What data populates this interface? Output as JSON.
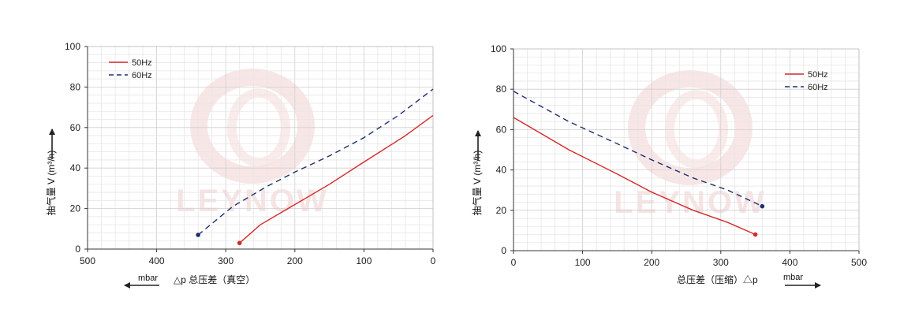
{
  "charts": [
    {
      "id": "vacuum",
      "ylabel": "抽气量 V (m³/h)",
      "xlabel": "△p 总压差（真空）",
      "xunit": "mbar",
      "xticks": [
        500,
        400,
        300,
        200,
        100,
        0
      ],
      "yticks": [
        0,
        20,
        40,
        60,
        80,
        100
      ],
      "legend": [
        "50Hz",
        "60Hz"
      ]
    },
    {
      "id": "pressure",
      "ylabel": "抽气量 V (m³/h)",
      "xlabel": "总压差（压缩）△p",
      "xunit": "mbar",
      "xticks": [
        0,
        100,
        200,
        300,
        400,
        500
      ],
      "yticks": [
        0,
        20,
        40,
        60,
        80,
        100
      ],
      "legend": [
        "50Hz",
        "60Hz"
      ]
    }
  ],
  "watermark": "LEYNOW",
  "colors": {
    "series50": "#d42a2a",
    "series60": "#1f2e6e",
    "grid": "#d8d8d8",
    "axis": "#333333"
  },
  "chart_data": [
    {
      "type": "line",
      "title": "",
      "xlabel": "△p 总压差（真空）",
      "ylabel": "抽气量 V (m³/h)",
      "xlim": [
        500,
        0
      ],
      "ylim": [
        0,
        100
      ],
      "x_reversed": true,
      "grid": true,
      "legend_position": "top-left",
      "series": [
        {
          "name": "50Hz",
          "style": "solid",
          "color": "#d42a2a",
          "marker_at": "start",
          "points": [
            [
              280,
              3
            ],
            [
              250,
              12
            ],
            [
              200,
              22
            ],
            [
              150,
              32
            ],
            [
              100,
              43
            ],
            [
              40,
              56
            ],
            [
              0,
              66
            ]
          ]
        },
        {
          "name": "60Hz",
          "style": "dashed",
          "color": "#1f2e6e",
          "marker_at": "start",
          "points": [
            [
              340,
              7
            ],
            [
              290,
              21
            ],
            [
              240,
              31
            ],
            [
              200,
              38
            ],
            [
              150,
              46
            ],
            [
              100,
              55
            ],
            [
              50,
              66
            ],
            [
              0,
              79
            ]
          ]
        }
      ]
    },
    {
      "type": "line",
      "title": "",
      "xlabel": "总压差（压缩）△p",
      "ylabel": "抽气量 V (m³/h)",
      "xlim": [
        0,
        500
      ],
      "ylim": [
        0,
        100
      ],
      "grid": true,
      "legend_position": "top-right",
      "series": [
        {
          "name": "50Hz",
          "style": "solid",
          "color": "#d42a2a",
          "marker_at": "end",
          "points": [
            [
              0,
              66
            ],
            [
              80,
              50
            ],
            [
              150,
              38
            ],
            [
              200,
              29
            ],
            [
              260,
              20
            ],
            [
              310,
              14
            ],
            [
              350,
              8
            ]
          ]
        },
        {
          "name": "60Hz",
          "style": "dashed",
          "color": "#1f2e6e",
          "marker_at": "end",
          "points": [
            [
              0,
              79
            ],
            [
              80,
              64
            ],
            [
              150,
              53
            ],
            [
              200,
              45
            ],
            [
              260,
              36
            ],
            [
              310,
              30
            ],
            [
              360,
              22
            ]
          ]
        }
      ]
    }
  ]
}
